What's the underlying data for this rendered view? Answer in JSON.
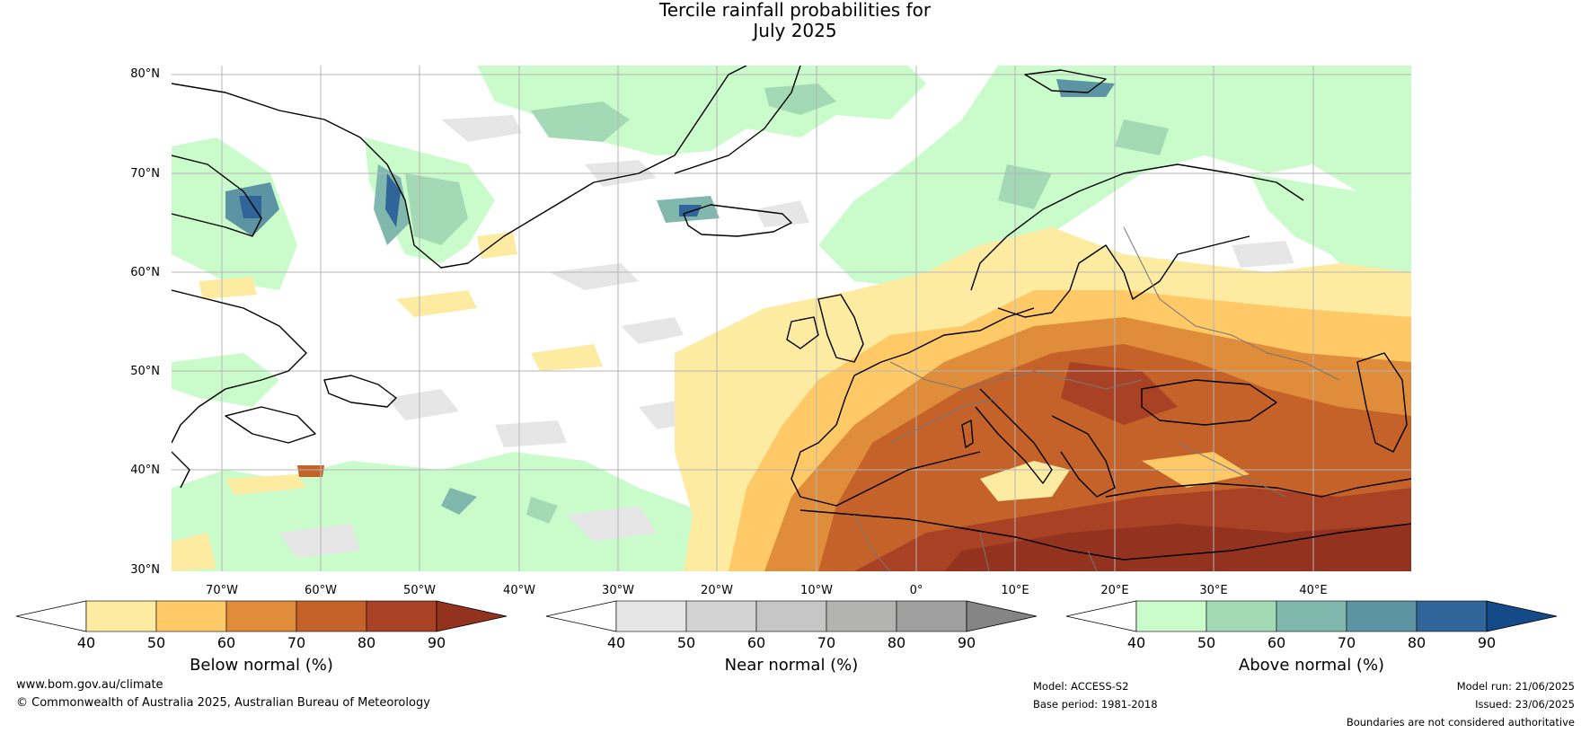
{
  "title_line1": "Tercile rainfall probabilities for",
  "title_line2": "July 2025",
  "lat_labels": [
    "80°N",
    "70°N",
    "60°N",
    "50°N",
    "40°N",
    "30°N"
  ],
  "lon_labels": [
    "70°W",
    "60°W",
    "50°W",
    "40°W",
    "30°W",
    "20°W",
    "10°W",
    "0°",
    "10°E",
    "20°E",
    "30°E",
    "40°E"
  ],
  "colorbars": [
    {
      "label": "Below normal (%)",
      "ticks": [
        "40",
        "50",
        "60",
        "70",
        "80",
        "90"
      ],
      "colors": [
        "#ffffff",
        "#feeba2",
        "#fec966",
        "#df8c3b",
        "#c4622a",
        "#a94125",
        "#93321f"
      ]
    },
    {
      "label": "Near normal (%)",
      "ticks": [
        "40",
        "50",
        "60",
        "70",
        "80",
        "90"
      ],
      "colors": [
        "#ffffff",
        "#e6e6e6",
        "#d3d3d3",
        "#c6c6c6",
        "#b3b4b2",
        "#9f9f9f",
        "#858585"
      ]
    },
    {
      "label": "Above normal (%)",
      "ticks": [
        "40",
        "50",
        "60",
        "70",
        "80",
        "90"
      ],
      "colors": [
        "#ffffff",
        "#c9fbcb",
        "#a4d9b6",
        "#80b8ae",
        "#5c94a3",
        "#30659a",
        "#144a87"
      ]
    }
  ],
  "footer": {
    "website": "www.bom.gov.au/climate",
    "copyright": "© Commonwealth of Australia 2025, Australian Bureau of Meteorology",
    "model": "Model: ACCESS-S2",
    "base_period": "Base period: 1981-2018",
    "model_run": "Model run: 21/06/2025",
    "issued": "Issued: 23/06/2025",
    "disclaimer": "Boundaries are not considered authoritative"
  }
}
